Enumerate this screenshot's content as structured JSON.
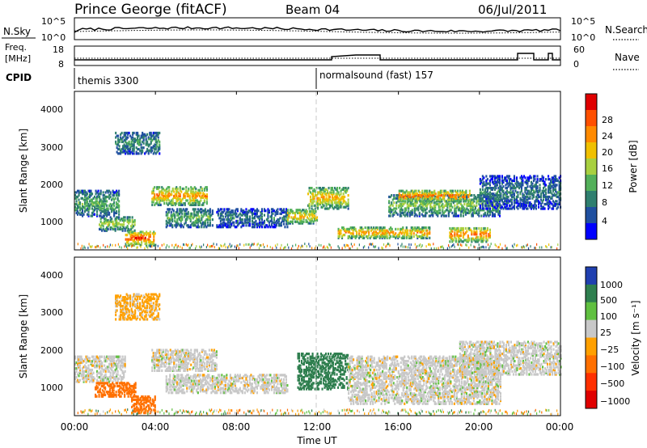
{
  "header": {
    "station": "Prince George (fitACF)",
    "beam": "Beam 04",
    "date": "06/Jul/2011"
  },
  "noise_panel": {
    "left_label": "N.Sky",
    "right_label": "N.Search",
    "left_ticks": [
      "10^5",
      "10^0"
    ],
    "right_ticks": [
      "10^5",
      "10^0"
    ]
  },
  "freq_panel": {
    "left_label_1": "Freq.",
    "left_label_2": "[MHz]",
    "right_label": "Nave",
    "left_ticks": [
      "18",
      "8"
    ],
    "right_ticks": [
      "60",
      "0"
    ]
  },
  "cpid_panel": {
    "label": "CPID",
    "modes": [
      {
        "name": "themis 3300",
        "start_hour": 0
      },
      {
        "name": "normalsound (fast) 157",
        "start_hour": 12
      }
    ]
  },
  "x_axis": {
    "label": "Time UT",
    "ticks": [
      "00:00",
      "04:00",
      "08:00",
      "12:00",
      "16:00",
      "20:00",
      "00:00"
    ]
  },
  "power_panel": {
    "ylabel": "Slant Range [km]",
    "y_ticks": [
      "4000",
      "3000",
      "2000",
      "1000"
    ],
    "colorbar_label": "Power [dB]",
    "colorbar_ticks": [
      "28",
      "24",
      "20",
      "16",
      "12",
      "8",
      "4"
    ],
    "colors": [
      "#0000ff",
      "#2050a0",
      "#2f7f6f",
      "#53b05a",
      "#a8d040",
      "#f0c000",
      "#ff8a00",
      "#ff5000",
      "#e00000"
    ]
  },
  "velocity_panel": {
    "ylabel": "Slant Range [km]",
    "y_ticks": [
      "4000",
      "3000",
      "2000",
      "1000"
    ],
    "colorbar_label": "Velocity [m s⁻¹]",
    "colorbar_ticks": [
      "1000",
      "500",
      "100",
      "25",
      "−25",
      "−100",
      "−500",
      "−1000"
    ],
    "colors": [
      "#2040b0",
      "#2f7f4f",
      "#60c040",
      "#c8c8c8",
      "#ffa000",
      "#ff7000",
      "#ff3000",
      "#e00000"
    ]
  },
  "chart_data": {
    "type": "heatmap",
    "title": "Prince George (fitACF) Beam 04 06/Jul/2011",
    "xlabel": "Time UT",
    "ylabel": "Slant Range [km]",
    "xlim_hours": [
      0,
      24
    ],
    "ylim_km": [
      180,
      4500
    ],
    "power_scale_db": [
      0,
      30
    ],
    "velocity_scale_ms": [
      -1000,
      1000
    ],
    "power_regions": [
      {
        "t0": 0.0,
        "t1": 2.2,
        "r0": 1100,
        "r1": 1800,
        "level": 12
      },
      {
        "t0": 1.2,
        "t1": 3.0,
        "r0": 700,
        "r1": 1100,
        "level": 16
      },
      {
        "t0": 2.5,
        "t1": 4.0,
        "r0": 300,
        "r1": 700,
        "level": 26
      },
      {
        "t0": 2.0,
        "t1": 4.2,
        "r0": 2800,
        "r1": 3400,
        "level": 10
      },
      {
        "t0": 3.8,
        "t1": 6.5,
        "r0": 1400,
        "r1": 1900,
        "level": 22
      },
      {
        "t0": 4.5,
        "t1": 6.8,
        "r0": 800,
        "r1": 1300,
        "level": 12
      },
      {
        "t0": 7.0,
        "t1": 10.5,
        "r0": 800,
        "r1": 1300,
        "level": 8
      },
      {
        "t0": 10.5,
        "t1": 12.0,
        "r0": 900,
        "r1": 1300,
        "level": 20
      },
      {
        "t0": 11.5,
        "t1": 13.5,
        "r0": 1300,
        "r1": 1900,
        "level": 20
      },
      {
        "t0": 13.0,
        "t1": 17.5,
        "r0": 500,
        "r1": 800,
        "level": 22
      },
      {
        "t0": 15.5,
        "t1": 21.0,
        "r0": 1100,
        "r1": 1700,
        "level": 14
      },
      {
        "t0": 16.0,
        "t1": 19.5,
        "r0": 1500,
        "r1": 1800,
        "level": 24
      },
      {
        "t0": 18.5,
        "t1": 20.5,
        "r0": 400,
        "r1": 800,
        "level": 24
      },
      {
        "t0": 20.0,
        "t1": 24.0,
        "r0": 1300,
        "r1": 2200,
        "level": 8
      }
    ],
    "velocity_regions": [
      {
        "t0": 0.0,
        "t1": 2.5,
        "r0": 1100,
        "r1": 1800,
        "vel": 0
      },
      {
        "t0": 1.0,
        "t1": 3.0,
        "r0": 700,
        "r1": 1100,
        "vel": -150
      },
      {
        "t0": 2.8,
        "t1": 4.0,
        "r0": 250,
        "r1": 700,
        "vel": -200
      },
      {
        "t0": 2.0,
        "t1": 4.2,
        "r0": 2800,
        "r1": 3500,
        "vel": -40
      },
      {
        "t0": 3.8,
        "t1": 7.0,
        "r0": 1400,
        "r1": 2000,
        "vel": 0
      },
      {
        "t0": 4.5,
        "t1": 7.0,
        "r0": 800,
        "r1": 1300,
        "vel": 0
      },
      {
        "t0": 7.0,
        "t1": 10.5,
        "r0": 800,
        "r1": 1300,
        "vel": 0
      },
      {
        "t0": 11.0,
        "t1": 13.5,
        "r0": 900,
        "r1": 1900,
        "vel": 300
      },
      {
        "t0": 13.5,
        "t1": 21.0,
        "r0": 500,
        "r1": 1800,
        "vel": 0
      },
      {
        "t0": 19.0,
        "t1": 24.0,
        "r0": 1300,
        "r1": 2200,
        "vel": 0
      }
    ],
    "cpid_change_hour": 12
  }
}
